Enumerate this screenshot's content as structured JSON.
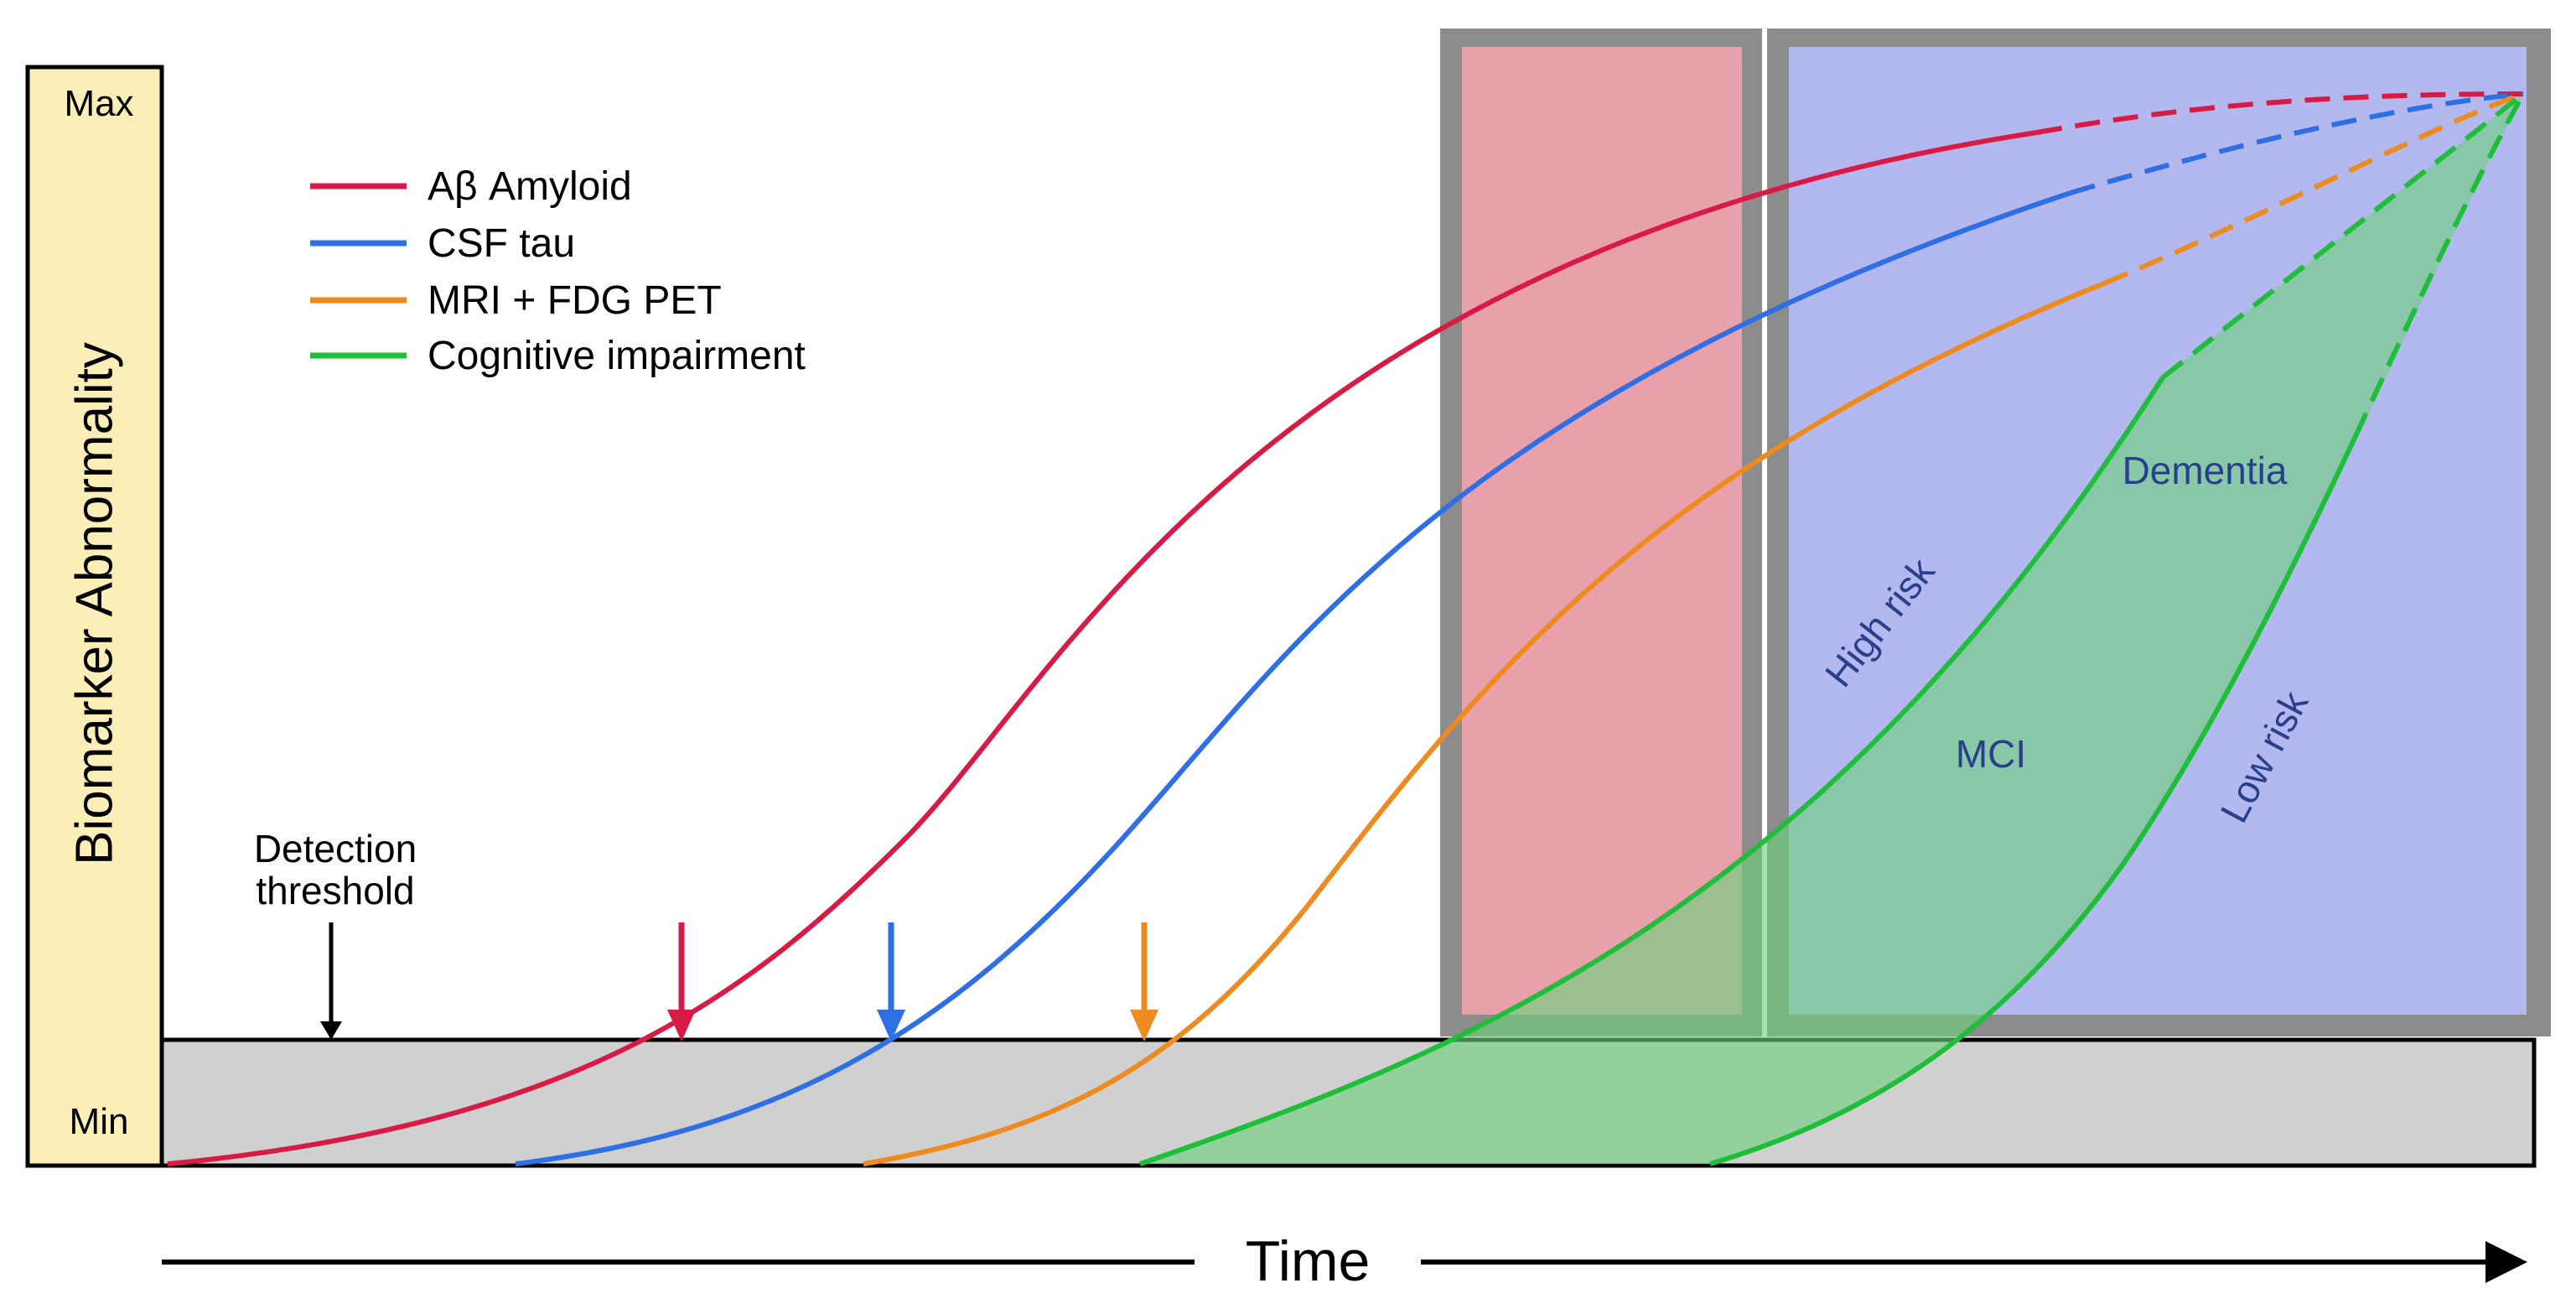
{
  "y_axis": {
    "label": "Biomarker Abnormality",
    "max_label": "Max",
    "min_label": "Min"
  },
  "x_axis": {
    "label": "Time"
  },
  "legend": [
    {
      "name": "Aβ Amyloid",
      "color": "#d81b45"
    },
    {
      "name": "CSF tau",
      "color": "#2f6fe6"
    },
    {
      "name": "MRI + FDG PET",
      "color": "#ee8a1e"
    },
    {
      "name": "Cognitive impairment",
      "color": "#1fbe3a"
    }
  ],
  "threshold": {
    "label_line1": "Detection",
    "label_line2": "threshold"
  },
  "regions": {
    "mci_label": "MCI",
    "dementia_label": "Dementia",
    "high_risk_label": "High risk",
    "low_risk_label": "Low risk"
  },
  "colors": {
    "axis_box": "#fbeeb6",
    "threshold_band": "#d0d0d0",
    "pink_panel": "#e8a0aa",
    "blue_panel": "#b3b8ef",
    "panel_frame": "#8c8c8c",
    "cognitive_fill": "#6ed27d",
    "region_text": "#2a3f8c"
  }
}
